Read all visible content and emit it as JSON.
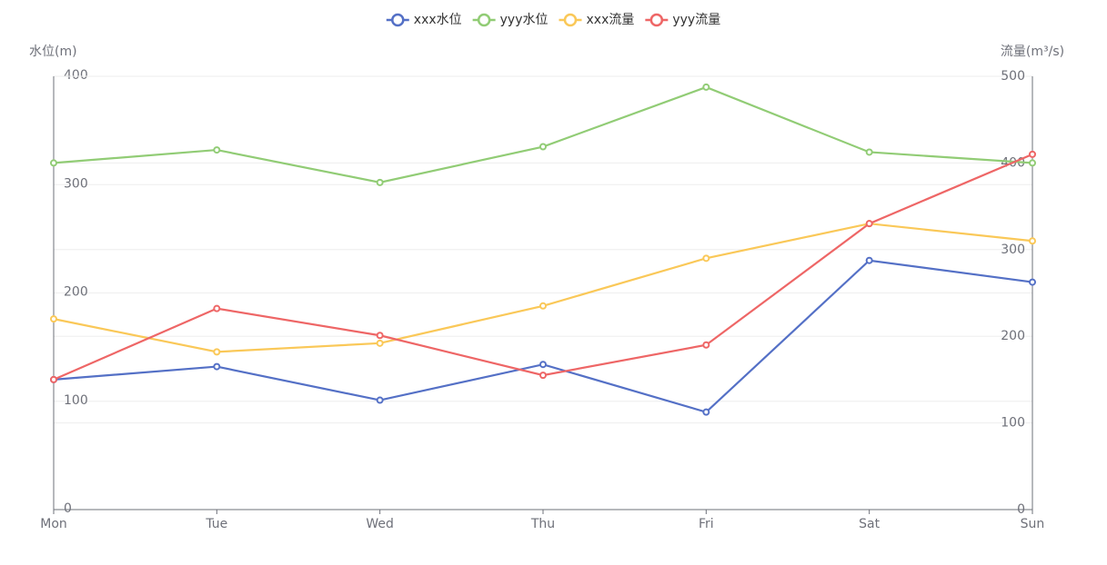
{
  "chart_data": {
    "type": "line",
    "categories": [
      "Mon",
      "Tue",
      "Wed",
      "Thu",
      "Fri",
      "Sat",
      "Sun"
    ],
    "y_label": "水位(m)",
    "y2_label": "流量(m³/s)",
    "ylim": [
      0,
      400
    ],
    "yticks": [
      0,
      100,
      200,
      300,
      400
    ],
    "y2lim": [
      0,
      500
    ],
    "y2ticks": [
      0,
      100,
      200,
      300,
      400,
      500
    ],
    "grid": true,
    "legend": "top",
    "series": [
      {
        "name": "xxx水位",
        "color": "#5470c6",
        "values": [
          120,
          132,
          101,
          134,
          90,
          230,
          210
        ]
      },
      {
        "name": "yyy水位",
        "color": "#91cc75",
        "values": [
          320,
          332,
          302,
          335,
          390,
          330,
          320
        ]
      },
      {
        "name": "xxx流量",
        "color": "#fac858",
        "axis": "y2",
        "values": [
          220,
          182,
          192,
          235,
          290,
          330,
          310
        ]
      },
      {
        "name": "yyy流量",
        "color": "#ee6666",
        "axis": "y2",
        "values": [
          150,
          232,
          201,
          155,
          190,
          330,
          410
        ]
      }
    ]
  }
}
